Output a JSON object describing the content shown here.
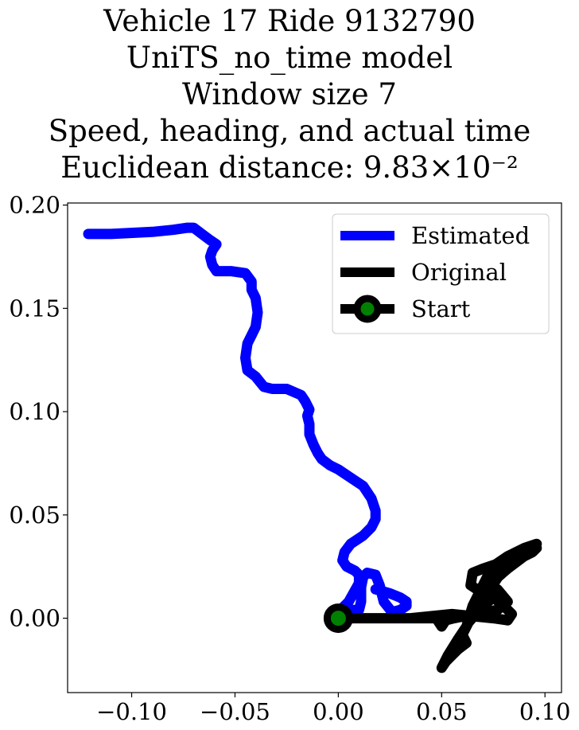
{
  "chart_data": {
    "type": "line",
    "title_lines": [
      "Vehicle 17 Ride 9132790",
      "UniTS_no_time model",
      "Window size 7",
      "Speed, heading, and actual time",
      "Euclidean distance: 9.83×10⁻²"
    ],
    "xlim": [
      -0.131,
      0.108
    ],
    "ylim": [
      -0.036,
      0.201
    ],
    "x_ticks": [
      -0.1,
      -0.05,
      0.0,
      0.05,
      0.1
    ],
    "x_tick_labels": [
      "−0.10",
      "−0.05",
      "0.00",
      "0.05",
      "0.10"
    ],
    "y_ticks": [
      0.0,
      0.05,
      0.1,
      0.15,
      0.2
    ],
    "y_tick_labels": [
      "0.00",
      "0.05",
      "0.10",
      "0.15",
      "0.20"
    ],
    "legend_position": "top-right",
    "colors": {
      "estimated": "#0000ff",
      "original": "#000000",
      "start_fill": "#008000"
    },
    "series": [
      {
        "name": "Estimated",
        "color": "#0000ff",
        "x": [
          -0.121,
          -0.11,
          -0.09,
          -0.08,
          -0.073,
          -0.07,
          -0.066,
          -0.062,
          -0.059,
          -0.061,
          -0.062,
          -0.061,
          -0.059,
          -0.052,
          -0.045,
          -0.042,
          -0.042,
          -0.04,
          -0.039,
          -0.04,
          -0.042,
          -0.044,
          -0.045,
          -0.044,
          -0.04,
          -0.036,
          -0.032,
          -0.025,
          -0.018,
          -0.016,
          -0.014,
          -0.015,
          -0.014,
          -0.014,
          -0.012,
          -0.01,
          -0.008,
          -0.004,
          0.0,
          0.006,
          0.012,
          0.016,
          0.018,
          0.018,
          0.016,
          0.012,
          0.006,
          0.003,
          0.002,
          0.004,
          0.008,
          0.01,
          0.01,
          0.005,
          0.001,
          0.0,
          0.001,
          0.0,
          -0.001,
          -0.004,
          0.0,
          0.005,
          0.01,
          0.011,
          0.011,
          0.012,
          0.014,
          0.018,
          0.02,
          0.022,
          0.026,
          0.03,
          0.033,
          0.033,
          0.03,
          0.025,
          0.018
        ],
        "y": [
          0.186,
          0.186,
          0.187,
          0.188,
          0.189,
          0.189,
          0.186,
          0.183,
          0.181,
          0.178,
          0.175,
          0.171,
          0.168,
          0.168,
          0.167,
          0.163,
          0.159,
          0.155,
          0.148,
          0.141,
          0.137,
          0.133,
          0.126,
          0.12,
          0.117,
          0.112,
          0.111,
          0.111,
          0.108,
          0.105,
          0.101,
          0.098,
          0.094,
          0.089,
          0.084,
          0.08,
          0.077,
          0.074,
          0.072,
          0.068,
          0.064,
          0.058,
          0.052,
          0.048,
          0.044,
          0.04,
          0.036,
          0.032,
          0.028,
          0.025,
          0.023,
          0.021,
          0.017,
          0.008,
          0.004,
          0.0,
          0.002,
          0.004,
          0.004,
          0.002,
          0.003,
          0.004,
          0.004,
          0.008,
          0.015,
          0.02,
          0.022,
          0.021,
          0.016,
          0.008,
          0.003,
          0.004,
          0.006,
          0.008,
          0.01,
          0.012,
          0.014
        ]
      },
      {
        "name": "Original",
        "color": "#000000",
        "x": [
          0.0,
          0.01,
          0.02,
          0.035,
          0.045,
          0.055,
          0.065,
          0.075,
          0.082,
          0.084,
          0.08,
          0.075,
          0.07,
          0.063,
          0.06,
          0.062,
          0.058,
          0.055,
          0.052,
          0.05,
          0.053,
          0.058,
          0.062,
          0.065,
          0.068,
          0.072,
          0.08,
          0.088,
          0.096,
          0.09,
          0.082,
          0.076,
          0.07,
          0.065,
          0.064,
          0.07,
          0.076,
          0.08,
          0.086,
          0.094,
          0.096,
          0.09,
          0.082,
          0.075,
          0.068,
          0.066,
          0.07,
          0.077,
          0.082,
          0.077,
          0.071,
          0.066,
          0.061,
          0.056,
          0.052,
          0.05,
          0.048,
          0.048,
          0.046,
          0.04,
          0.03,
          0.02,
          0.01,
          0.0
        ],
        "y": [
          0.0,
          0.0,
          0.0,
          0.0,
          0.001,
          0.002,
          0.001,
          0.0,
          -0.001,
          0.002,
          0.006,
          0.01,
          0.006,
          -0.002,
          -0.008,
          -0.012,
          -0.015,
          -0.018,
          -0.021,
          -0.024,
          -0.018,
          -0.01,
          -0.004,
          0.006,
          0.012,
          0.02,
          0.026,
          0.031,
          0.036,
          0.034,
          0.03,
          0.026,
          0.024,
          0.022,
          0.016,
          0.012,
          0.018,
          0.024,
          0.028,
          0.032,
          0.034,
          0.03,
          0.024,
          0.018,
          0.012,
          0.008,
          0.01,
          0.014,
          0.008,
          0.004,
          0.003,
          0.001,
          0.001,
          0.0,
          -0.001,
          -0.004,
          -0.001,
          0.001,
          0.0,
          0.0,
          0.0,
          0.0,
          0.0,
          0.0
        ]
      },
      {
        "name": "Start",
        "x": [
          0.0
        ],
        "y": [
          0.0
        ]
      }
    ]
  }
}
